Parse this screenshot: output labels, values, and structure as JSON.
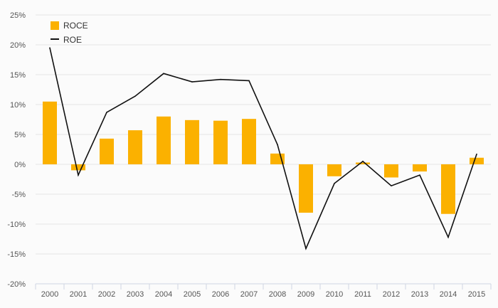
{
  "chart_data": {
    "type": "bar",
    "categories": [
      "2000",
      "2001",
      "2002",
      "2003",
      "2004",
      "2005",
      "2006",
      "2007",
      "2008",
      "2009",
      "2010",
      "2011",
      "2012",
      "2013",
      "2014",
      "2015"
    ],
    "series": [
      {
        "name": "ROCE",
        "type": "bar",
        "color": "#fbb100",
        "values": [
          10.5,
          -1.0,
          4.3,
          5.7,
          8.0,
          7.4,
          7.3,
          7.6,
          1.8,
          -8.1,
          -2.0,
          0.3,
          -2.2,
          -1.2,
          -8.3,
          1.1
        ]
      },
      {
        "name": "ROE",
        "type": "line",
        "color": "#111111",
        "values": [
          19.5,
          -1.8,
          8.7,
          11.4,
          15.2,
          13.8,
          14.2,
          14.0,
          3.3,
          -14.1,
          -3.2,
          0.5,
          -3.6,
          -1.8,
          -12.2,
          1.7
        ]
      }
    ],
    "y_ticks": [
      "25%",
      "20%",
      "15%",
      "10%",
      "5%",
      "0%",
      "-5%",
      "-10%",
      "-15%",
      "-20%"
    ],
    "ylim": [
      -20,
      25
    ],
    "grid": true,
    "legend_position": "top-left"
  }
}
